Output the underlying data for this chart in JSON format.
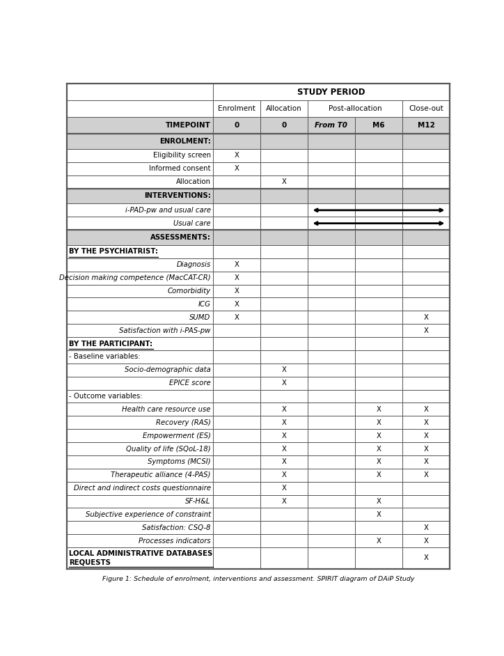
{
  "title": "Figure 1: Schedule of enrolment, interventions and assessment. SPIRIT diagram of DAiP Study",
  "study_period_label": "STUDY PERIOD",
  "col_headers_row2": [
    "TIMEPOINT",
    "0",
    "0",
    "From T0",
    "M6",
    "M12"
  ],
  "sections": [
    {
      "label": "ENROLMENT:",
      "bold": true,
      "italic": false,
      "underline": false,
      "align": "right",
      "is_section_header": true,
      "marks": {}
    },
    {
      "label": "Eligibility screen",
      "bold": false,
      "italic": false,
      "underline": false,
      "align": "right",
      "is_section_header": false,
      "marks": {
        "col1": "X"
      }
    },
    {
      "label": "Informed consent",
      "bold": false,
      "italic": false,
      "underline": false,
      "align": "right",
      "is_section_header": false,
      "marks": {
        "col1": "X"
      }
    },
    {
      "label": "Allocation",
      "bold": false,
      "italic": false,
      "underline": false,
      "align": "right",
      "is_section_header": false,
      "marks": {
        "col2": "X"
      }
    },
    {
      "label": "INTERVENTIONS:",
      "bold": true,
      "italic": false,
      "underline": false,
      "align": "right",
      "is_section_header": true,
      "marks": {}
    },
    {
      "label": "i-PAD-pw and usual care",
      "bold": false,
      "italic": true,
      "underline": false,
      "align": "right",
      "is_section_header": false,
      "marks": {
        "arrow": [
          3,
          5
        ]
      }
    },
    {
      "label": "Usual care",
      "bold": false,
      "italic": true,
      "underline": false,
      "align": "right",
      "is_section_header": false,
      "marks": {
        "arrow": [
          3,
          5
        ]
      }
    },
    {
      "label": "ASSESSMENTS:",
      "bold": true,
      "italic": false,
      "underline": false,
      "align": "right",
      "is_section_header": true,
      "marks": {}
    },
    {
      "label": "BY THE PSYCHIATRIST:",
      "bold": true,
      "italic": false,
      "underline": true,
      "align": "left",
      "is_section_header": false,
      "marks": {}
    },
    {
      "label": "Diagnosis",
      "bold": false,
      "italic": true,
      "underline": false,
      "align": "right",
      "is_section_header": false,
      "marks": {
        "col1": "X"
      }
    },
    {
      "label": "Decision making competence (MacCAT-CR)",
      "bold": false,
      "italic": true,
      "underline": false,
      "align": "right",
      "is_section_header": false,
      "marks": {
        "col1": "X"
      }
    },
    {
      "label": "Comorbidity",
      "bold": false,
      "italic": true,
      "underline": false,
      "align": "right",
      "is_section_header": false,
      "marks": {
        "col1": "X"
      }
    },
    {
      "label": "ICG",
      "bold": false,
      "italic": true,
      "underline": false,
      "align": "right",
      "is_section_header": false,
      "marks": {
        "col1": "X"
      }
    },
    {
      "label": "SUMD",
      "bold": false,
      "italic": true,
      "underline": false,
      "align": "right",
      "is_section_header": false,
      "marks": {
        "col1": "X",
        "col5": "X"
      }
    },
    {
      "label": "Satisfaction with i-PAS-pw",
      "bold": false,
      "italic": true,
      "underline": false,
      "align": "right",
      "is_section_header": false,
      "marks": {
        "col5": "X"
      }
    },
    {
      "label": "BY THE PARTICIPANT:",
      "bold": true,
      "italic": false,
      "underline": true,
      "align": "left",
      "is_section_header": false,
      "marks": {}
    },
    {
      "label": "- Baseline variables:",
      "bold": false,
      "italic": false,
      "underline": false,
      "align": "left",
      "is_section_header": false,
      "marks": {}
    },
    {
      "label": "Socio-demographic data",
      "bold": false,
      "italic": true,
      "underline": false,
      "align": "right",
      "is_section_header": false,
      "marks": {
        "col2": "X"
      }
    },
    {
      "label": "EPICE score",
      "bold": false,
      "italic": true,
      "underline": false,
      "align": "right",
      "is_section_header": false,
      "marks": {
        "col2": "X"
      }
    },
    {
      "label": "- Outcome variables:",
      "bold": false,
      "italic": false,
      "underline": false,
      "align": "left",
      "is_section_header": false,
      "marks": {}
    },
    {
      "label": "Health care resource use",
      "bold": false,
      "italic": true,
      "underline": false,
      "align": "right",
      "is_section_header": false,
      "marks": {
        "col2": "X",
        "col4": "X",
        "col5": "X"
      }
    },
    {
      "label": "Recovery (RAS)",
      "bold": false,
      "italic": true,
      "underline": false,
      "align": "right",
      "is_section_header": false,
      "marks": {
        "col2": "X",
        "col4": "X",
        "col5": "X"
      }
    },
    {
      "label": "Empowerment (ES)",
      "bold": false,
      "italic": true,
      "underline": false,
      "align": "right",
      "is_section_header": false,
      "marks": {
        "col2": "X",
        "col4": "X",
        "col5": "X"
      }
    },
    {
      "label": "Quality of life (SQoL-18)",
      "bold": false,
      "italic": true,
      "underline": false,
      "align": "right",
      "is_section_header": false,
      "marks": {
        "col2": "X",
        "col4": "X",
        "col5": "X"
      }
    },
    {
      "label": "Symptoms (MCSI)",
      "bold": false,
      "italic": true,
      "underline": false,
      "align": "right",
      "is_section_header": false,
      "marks": {
        "col2": "X",
        "col4": "X",
        "col5": "X"
      }
    },
    {
      "label": "Therapeutic alliance (4-PAS)",
      "bold": false,
      "italic": true,
      "underline": false,
      "align": "right",
      "is_section_header": false,
      "marks": {
        "col2": "X",
        "col4": "X",
        "col5": "X"
      }
    },
    {
      "label": "Direct and indirect costs questionnaire",
      "bold": false,
      "italic": true,
      "underline": false,
      "align": "right",
      "is_section_header": false,
      "marks": {
        "col2": "X"
      }
    },
    {
      "label": "SF-H&L",
      "bold": false,
      "italic": true,
      "underline": false,
      "align": "right",
      "is_section_header": false,
      "marks": {
        "col2": "X",
        "col4": "X"
      }
    },
    {
      "label": "Subjective experience of constraint",
      "bold": false,
      "italic": true,
      "underline": false,
      "align": "right",
      "is_section_header": false,
      "marks": {
        "col4": "X"
      }
    },
    {
      "label": "Satisfaction: CSQ-8",
      "bold": false,
      "italic": true,
      "underline": false,
      "align": "right",
      "is_section_header": false,
      "marks": {
        "col5": "X"
      }
    },
    {
      "label": "Processes indicators",
      "bold": false,
      "italic": true,
      "underline": false,
      "align": "right",
      "is_section_header": false,
      "marks": {
        "col4": "X",
        "col5": "X"
      }
    },
    {
      "label": "LOCAL ADMINISTRATIVE DATABASES\nREQUESTS",
      "bold": true,
      "italic": false,
      "underline": true,
      "align": "left",
      "is_section_header": false,
      "marks": {
        "col5": "X"
      }
    }
  ],
  "thick_sep_before": [
    4,
    7
  ],
  "background_header": "#d0d0d0",
  "background_white": "#ffffff",
  "border_color": "#555555"
}
